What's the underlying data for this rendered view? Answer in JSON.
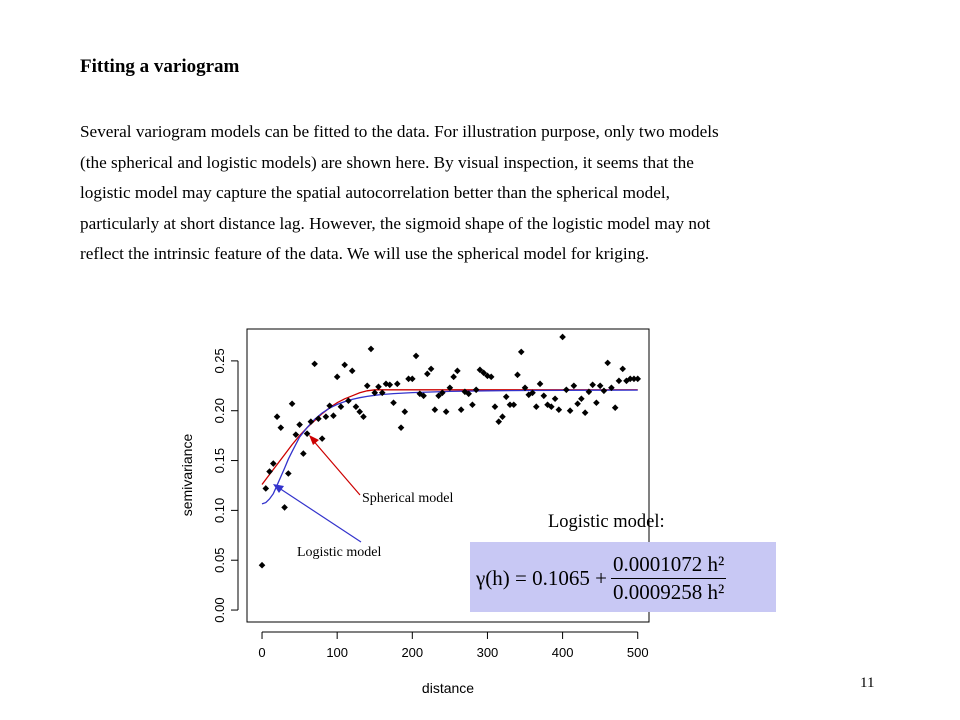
{
  "slide": {
    "title": "Fitting a variogram",
    "paragraph_lines": [
      "Several variogram models can be fitted to the data. For illustration purpose, only two models",
      "(the spherical and logistic models) are shown here. By visual inspection, it seems that the",
      "logistic model may capture the spatial autocorrelation better than the spherical model,",
      "particularly at short distance lag. However, the sigmoid shape of the logistic model may not",
      "reflect the intrinsic feature of the data. We will use the spherical model for kriging."
    ],
    "logistic_label": "Logistic model:",
    "formula": {
      "lhs": "γ(h) = 0.1065 +",
      "numerator": "0.0001072 h²",
      "denominator": "0.0009258 h²"
    },
    "page_number": "11"
  },
  "chart_data": {
    "type": "scatter",
    "xlabel": "distance",
    "ylabel": "semivariance",
    "xlim": [
      -20,
      515
    ],
    "ylim": [
      -0.012,
      0.282
    ],
    "xticks": [
      0,
      100,
      200,
      300,
      400,
      500
    ],
    "yticks": [
      0.0,
      0.05,
      0.1,
      0.15,
      0.2,
      0.25
    ],
    "xtick_labels": [
      "0",
      "100",
      "200",
      "300",
      "400",
      "500"
    ],
    "ytick_labels": [
      "0.00",
      "0.05",
      "0.10",
      "0.15",
      "0.20",
      "0.25"
    ],
    "annotations": [
      {
        "text": "Spherical model",
        "color": "#cc0000"
      },
      {
        "text": "Logistic model",
        "color": "#3333cc"
      }
    ],
    "points": {
      "x": [
        0,
        5,
        10,
        15,
        20,
        25,
        30,
        35,
        40,
        45,
        50,
        55,
        60,
        65,
        70,
        75,
        80,
        85,
        90,
        95,
        100,
        105,
        110,
        115,
        120,
        125,
        130,
        135,
        140,
        145,
        150,
        155,
        160,
        165,
        170,
        175,
        180,
        185,
        190,
        195,
        200,
        205,
        210,
        215,
        220,
        225,
        230,
        235,
        240,
        245,
        250,
        255,
        260,
        265,
        270,
        275,
        280,
        285,
        290,
        295,
        300,
        305,
        310,
        315,
        320,
        325,
        330,
        335,
        340,
        345,
        350,
        355,
        360,
        365,
        370,
        375,
        380,
        385,
        390,
        395,
        400,
        405,
        410,
        415,
        420,
        425,
        430,
        435,
        440,
        445,
        450,
        455,
        460,
        465,
        470,
        475,
        480,
        485,
        490,
        495,
        500
      ],
      "y": [
        0.045,
        0.122,
        0.139,
        0.147,
        0.194,
        0.183,
        0.103,
        0.137,
        0.207,
        0.176,
        0.186,
        0.157,
        0.177,
        0.189,
        0.247,
        0.192,
        0.172,
        0.194,
        0.205,
        0.195,
        0.234,
        0.204,
        0.246,
        0.21,
        0.24,
        0.204,
        0.199,
        0.194,
        0.225,
        0.262,
        0.218,
        0.224,
        0.218,
        0.227,
        0.226,
        0.208,
        0.227,
        0.183,
        0.199,
        0.232,
        0.232,
        0.255,
        0.217,
        0.215,
        0.237,
        0.242,
        0.201,
        0.215,
        0.218,
        0.199,
        0.223,
        0.234,
        0.24,
        0.201,
        0.219,
        0.217,
        0.206,
        0.221,
        0.241,
        0.238,
        0.235,
        0.234,
        0.204,
        0.189,
        0.194,
        0.214,
        0.206,
        0.206,
        0.236,
        0.259,
        0.223,
        0.216,
        0.218,
        0.204,
        0.227,
        0.215,
        0.206,
        0.204,
        0.212,
        0.201,
        0.274,
        0.221,
        0.2,
        0.225,
        0.207,
        0.212,
        0.198,
        0.219,
        0.226,
        0.208,
        0.225,
        0.22,
        0.248,
        0.223,
        0.203,
        0.23,
        0.242,
        0.23,
        0.232,
        0.232,
        0.232
      ]
    },
    "series": [
      {
        "name": "Spherical model",
        "color": "#cc0000",
        "x": [
          0,
          10,
          20,
          30,
          40,
          50,
          60,
          70,
          80,
          90,
          100,
          110,
          120,
          130,
          140,
          150,
          160,
          170,
          500
        ],
        "y": [
          0.126,
          0.136,
          0.146,
          0.156,
          0.166,
          0.175,
          0.183,
          0.19,
          0.197,
          0.203,
          0.208,
          0.212,
          0.215,
          0.218,
          0.22,
          0.221,
          0.221,
          0.221,
          0.221
        ]
      },
      {
        "name": "Logistic model",
        "color": "#3333cc",
        "x": [
          0,
          5,
          10,
          15,
          20,
          25,
          30,
          35,
          40,
          50,
          60,
          70,
          80,
          90,
          100,
          110,
          120,
          130,
          140,
          150,
          160,
          175,
          200,
          250,
          300,
          350,
          400,
          450,
          500
        ],
        "y": [
          0.1065,
          0.1078,
          0.1114,
          0.1167,
          0.1253,
          0.1337,
          0.1424,
          0.1514,
          0.159,
          0.1735,
          0.1831,
          0.1914,
          0.1977,
          0.2026,
          0.2063,
          0.2092,
          0.2114,
          0.2131,
          0.2144,
          0.2155,
          0.2163,
          0.2172,
          0.2182,
          0.2194,
          0.22,
          0.2203,
          0.2205,
          0.2206,
          0.2207
        ]
      }
    ]
  }
}
